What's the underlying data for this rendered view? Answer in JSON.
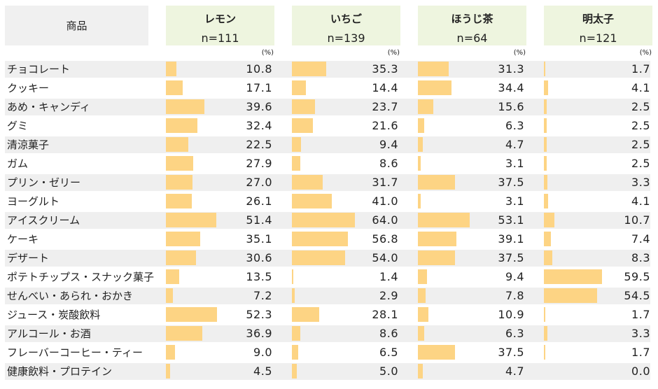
{
  "chart_data": {
    "type": "bar",
    "row_header": "商品",
    "unit_label": "(%)",
    "xlim": [
      0,
      100
    ],
    "bar_color": "#fdd484",
    "header_color": "#eef5df",
    "stripe_color": "#efefef",
    "categories": [
      "チョコレート",
      "クッキー",
      "あめ・キャンディ",
      "グミ",
      "清涼菓子",
      "ガム",
      "プリン・ゼリー",
      "ヨーグルト",
      "アイスクリーム",
      "ケーキ",
      "デザート",
      "ポテトチップス・スナック菓子",
      "せんべい・あられ・おかき",
      "ジュース・炭酸飲料",
      "アルコール・お酒",
      "フレーバーコーヒー・ティー",
      "健康飲料・プロテイン"
    ],
    "series": [
      {
        "name": "レモン",
        "n": "n=111",
        "values": [
          10.8,
          17.1,
          39.6,
          32.4,
          22.5,
          27.9,
          27.0,
          26.1,
          51.4,
          35.1,
          30.6,
          13.5,
          7.2,
          52.3,
          36.9,
          9.0,
          4.5
        ]
      },
      {
        "name": "いちご",
        "n": "n=139",
        "values": [
          35.3,
          14.4,
          23.7,
          21.6,
          9.4,
          8.6,
          31.7,
          41.0,
          64.0,
          56.8,
          54.0,
          1.4,
          2.9,
          28.1,
          8.6,
          6.5,
          5.0
        ]
      },
      {
        "name": "ほうじ茶",
        "n": "n=64",
        "values": [
          31.3,
          34.4,
          15.6,
          6.3,
          4.7,
          3.1,
          37.5,
          3.1,
          53.1,
          39.1,
          37.5,
          9.4,
          7.8,
          10.9,
          6.3,
          37.5,
          4.7
        ]
      },
      {
        "name": "明太子",
        "n": "n=121",
        "values": [
          1.7,
          4.1,
          2.5,
          2.5,
          2.5,
          2.5,
          3.3,
          4.1,
          10.7,
          7.4,
          8.3,
          59.5,
          54.5,
          1.7,
          3.3,
          1.7,
          0.0
        ]
      }
    ]
  }
}
